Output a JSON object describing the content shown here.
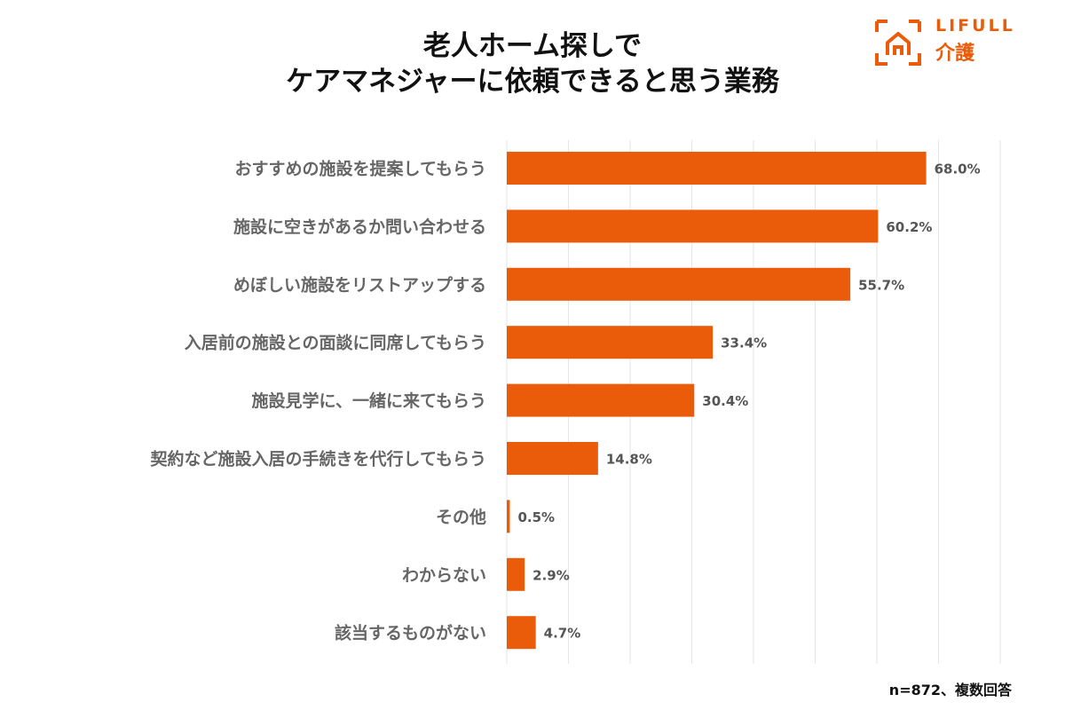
{
  "title": {
    "line1": "老人ホーム探しで",
    "line2": "ケアマネジャーに依頼できると思う業務"
  },
  "logo": {
    "top": "LIFULL",
    "bottom": "介護"
  },
  "note": "n=872、複数回答",
  "colors": {
    "bar": "#ea5c0a",
    "grid": "#e6e6e6"
  },
  "chart_data": {
    "type": "bar",
    "orientation": "horizontal",
    "categories": [
      "おすすめの施設を提案してもらう",
      "施設に空きがあるか問い合わせる",
      "めぼしい施設をリストアップする",
      "入居前の施設との面談に同席してもらう",
      "施設見学に、一緒に来てもらう",
      "契約など施設入居の手続きを代行してもらう",
      "その他",
      "わからない",
      "該当するものがない"
    ],
    "values": [
      68.0,
      60.2,
      55.7,
      33.4,
      30.4,
      14.8,
      0.5,
      2.9,
      4.7
    ],
    "value_labels": [
      "68.0%",
      "60.2%",
      "55.7%",
      "33.4%",
      "30.4%",
      "14.8%",
      "0.5%",
      "2.9%",
      "4.7%"
    ],
    "xlim": [
      0,
      80
    ],
    "grid": true
  }
}
